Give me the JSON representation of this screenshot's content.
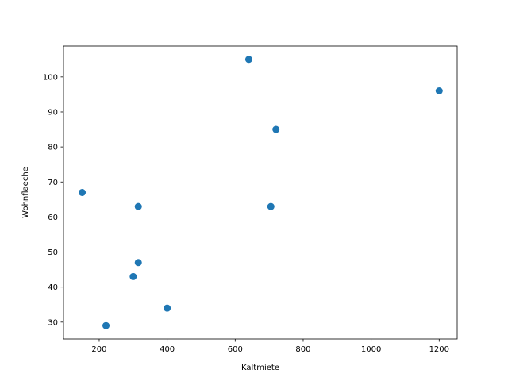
{
  "chart_data": {
    "type": "scatter",
    "title": "",
    "xlabel": "Kaltmiete",
    "ylabel": "Wohnflaeche",
    "xlim": [
      95,
      1253
    ],
    "ylim": [
      25.2,
      108.8
    ],
    "xticks": [
      200,
      400,
      600,
      800,
      1000,
      1200
    ],
    "yticks": [
      30,
      40,
      50,
      60,
      70,
      80,
      90,
      100
    ],
    "grid": false,
    "marker_color": "#1f77b4",
    "series": [
      {
        "points": [
          {
            "x": 640,
            "y": 105
          },
          {
            "x": 1200,
            "y": 96
          },
          {
            "x": 720,
            "y": 85
          },
          {
            "x": 150,
            "y": 67
          },
          {
            "x": 315,
            "y": 63
          },
          {
            "x": 705,
            "y": 63
          },
          {
            "x": 315,
            "y": 47
          },
          {
            "x": 300,
            "y": 43
          },
          {
            "x": 400,
            "y": 34
          },
          {
            "x": 220,
            "y": 29
          }
        ]
      }
    ]
  }
}
